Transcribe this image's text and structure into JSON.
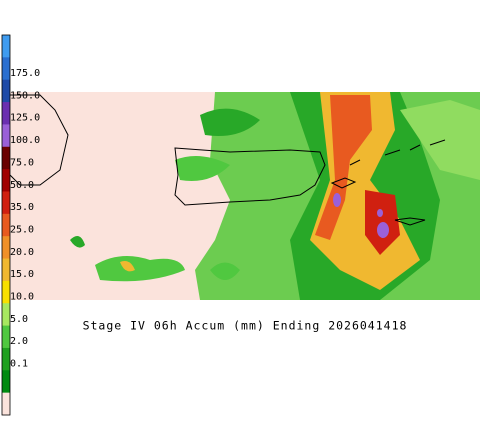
{
  "caption": "Stage IV 06h Accum (mm) Ending 2026041418",
  "legend": {
    "labels": [
      "175.0",
      "150.0",
      "125.0",
      "100.0",
      "75.0",
      "50.0",
      "35.0",
      "25.0",
      "20.0",
      "15.0",
      "10.0",
      "5.0",
      "2.0",
      "0.1"
    ],
    "colors": [
      "#3f9cf0",
      "#2a6fd0",
      "#1f4aa8",
      "#6a2fb0",
      "#9a60d8",
      "#6a0000",
      "#a00000",
      "#d02010",
      "#e85a20",
      "#f09028",
      "#f0b830",
      "#f8e000",
      "#a8e860",
      "#50c840",
      "#20a020",
      "#008a10",
      "#fbe3dc"
    ]
  }
}
